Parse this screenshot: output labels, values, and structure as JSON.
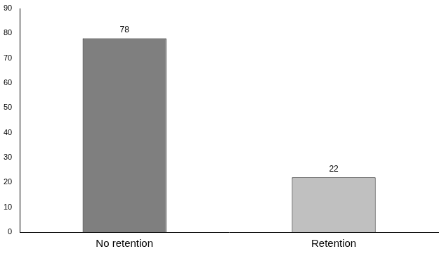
{
  "chart_data": {
    "type": "bar",
    "categories": [
      "No retention",
      "Retention"
    ],
    "values": [
      78,
      22
    ],
    "colors": [
      "#7f7f7f",
      "#c0c0c0"
    ],
    "ylim": [
      0,
      90
    ],
    "yticks": [
      0,
      10,
      20,
      30,
      40,
      50,
      60,
      70,
      80,
      90
    ],
    "grid": false,
    "data_labels": true
  }
}
